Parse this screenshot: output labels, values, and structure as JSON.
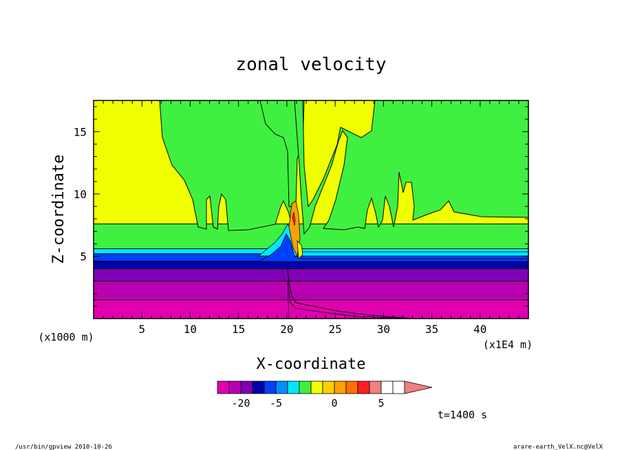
{
  "chart_data": {
    "type": "heatmap",
    "title": "zonal velocity",
    "xlabel": "X-coordinate",
    "ylabel": "Z-coordinate",
    "x_unit_label": "(x1000 m)",
    "x_scale_label": "(x1E4 m)",
    "xlim": [
      0,
      45
    ],
    "ylim": [
      0,
      17.5
    ],
    "x_ticks": [
      5,
      10,
      15,
      20,
      25,
      30,
      35,
      40
    ],
    "y_ticks": [
      5,
      10,
      15
    ],
    "time_label": "t=1400 s",
    "colorbar": {
      "levels": [
        -30,
        -25,
        -20,
        -15,
        -10,
        -5,
        -4,
        -3,
        -2,
        -1,
        0,
        1,
        2,
        3,
        5,
        10,
        15
      ],
      "labels": [
        {
          "value": -20,
          "text": "-20"
        },
        {
          "value": -5,
          "text": "-5"
        },
        {
          "value": 0,
          "text": "0"
        },
        {
          "value": 5,
          "text": "5"
        }
      ],
      "colors": [
        "#e000b0",
        "#b800b0",
        "#8000b8",
        "#0000a8",
        "#0040ff",
        "#0090ff",
        "#00e8ff",
        "#40f040",
        "#f0ff00",
        "#ffd000",
        "#ffa000",
        "#ff7000",
        "#ff2020",
        "#f08080"
      ]
    },
    "bands": [
      {
        "name": "",
        "color": "#e000b0",
        "z": 0.0
      },
      {
        "name": "",
        "color": "#b800b0",
        "z": 1.5
      },
      {
        "name": "",
        "color": "#8000b8",
        "z": 3.0
      },
      {
        "name": "",
        "color": "#0000a8",
        "z": 4.0
      },
      {
        "name": "",
        "color": "#0040ff",
        "z": 4.6
      },
      {
        "name": "",
        "color": "#00e8ff",
        "z": 5.2
      },
      {
        "name": "",
        "color": "#40f040",
        "z": 5.6
      },
      {
        "name": "",
        "color": "#f0ff00",
        "z": 7.6
      }
    ]
  },
  "footer": {
    "left": "/usr/bin/gpview  2010-10-26",
    "right": "arare-earth_VelX.nc@VelX"
  },
  "colors": {
    "magenta": "#e000b0",
    "purple": "#b800b0",
    "violet": "#8000b8",
    "navy": "#0000a8",
    "blue": "#0040ff",
    "cyan": "#00e8ff",
    "green": "#40f040",
    "yellow": "#f0ff00",
    "orange": "#ffa000",
    "red": "#ff2020",
    "pink": "#f08080"
  }
}
